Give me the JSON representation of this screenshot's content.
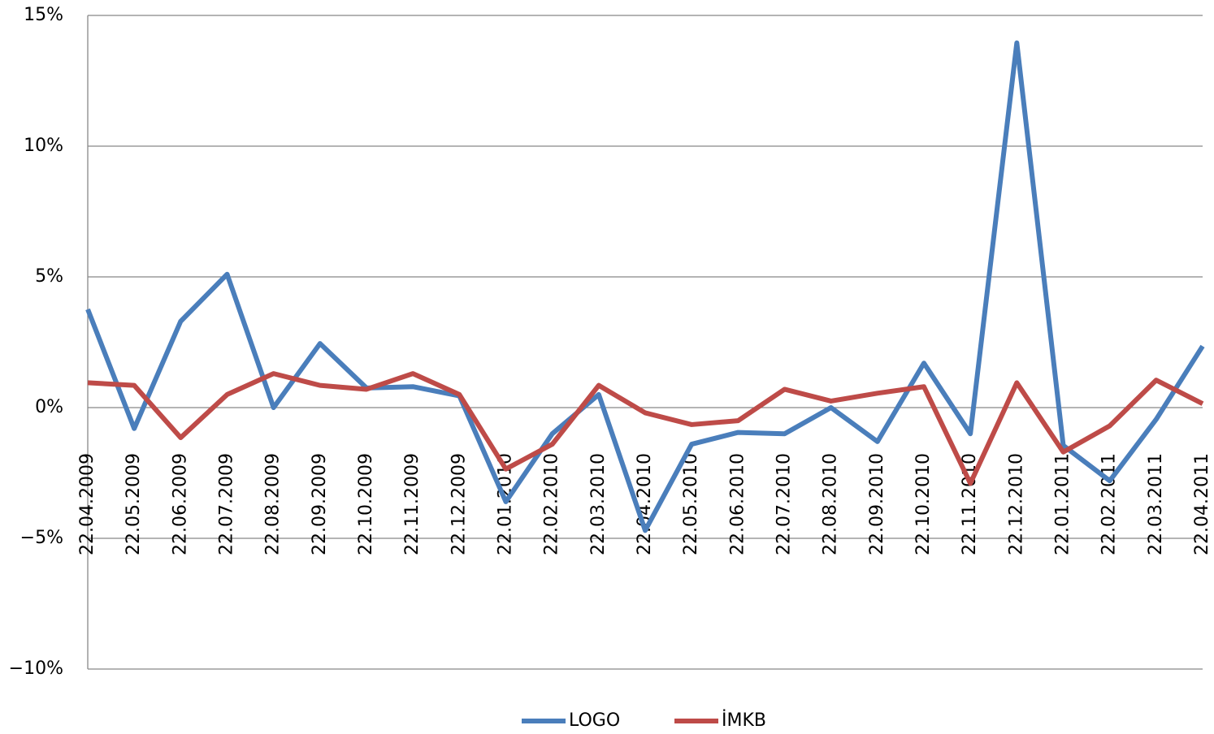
{
  "chart_data": {
    "type": "line",
    "categories": [
      "22.04.2009",
      "22.05.2009",
      "22.06.2009",
      "22.07.2009",
      "22.08.2009",
      "22.09.2009",
      "22.10.2009",
      "22.11.2009",
      "22.12.2009",
      "22.01.2010",
      "22.02.2010",
      "22.03.2010",
      "22.04.2010",
      "22.05.2010",
      "22.06.2010",
      "22.07.2010",
      "22.08.2010",
      "22.09.2010",
      "22.10.2010",
      "22.11.2010",
      "22.12.2010",
      "22.01.2011",
      "22.02.2011",
      "22.03.2011",
      "22.04.2011"
    ],
    "series": [
      {
        "name": "LOGO",
        "color": "#4a7ebb",
        "values": [
          3.76,
          -0.8,
          3.3,
          5.1,
          0,
          2.45,
          0.75,
          0.8,
          0.45,
          -3.6,
          -1.0,
          0.5,
          -4.7,
          -1.4,
          -0.95,
          -1.0,
          0,
          -1.3,
          1.7,
          -1.0,
          13.95,
          -1.45,
          -2.8,
          -0.45,
          2.35
        ]
      },
      {
        "name": "İMKB",
        "color": "#be4b48",
        "values": [
          0.95,
          0.85,
          -1.15,
          0.5,
          1.3,
          0.85,
          0.7,
          1.3,
          0.5,
          -2.35,
          -1.4,
          0.85,
          -0.2,
          -0.65,
          -0.5,
          0.7,
          0.25,
          0.55,
          0.8,
          -2.9,
          0.95,
          -1.7,
          -0.7,
          1.05,
          0.15
        ]
      }
    ],
    "ylim": [
      -10,
      15
    ],
    "yticks": [
      {
        "value": -10,
        "label": "−10%"
      },
      {
        "value": -5,
        "label": "−5%"
      },
      {
        "value": 0,
        "label": "0%"
      },
      {
        "value": 5,
        "label": "5%"
      },
      {
        "value": 10,
        "label": "10%"
      },
      {
        "value": 15,
        "label": "15%"
      }
    ],
    "grid": true,
    "legend": "bottom"
  }
}
